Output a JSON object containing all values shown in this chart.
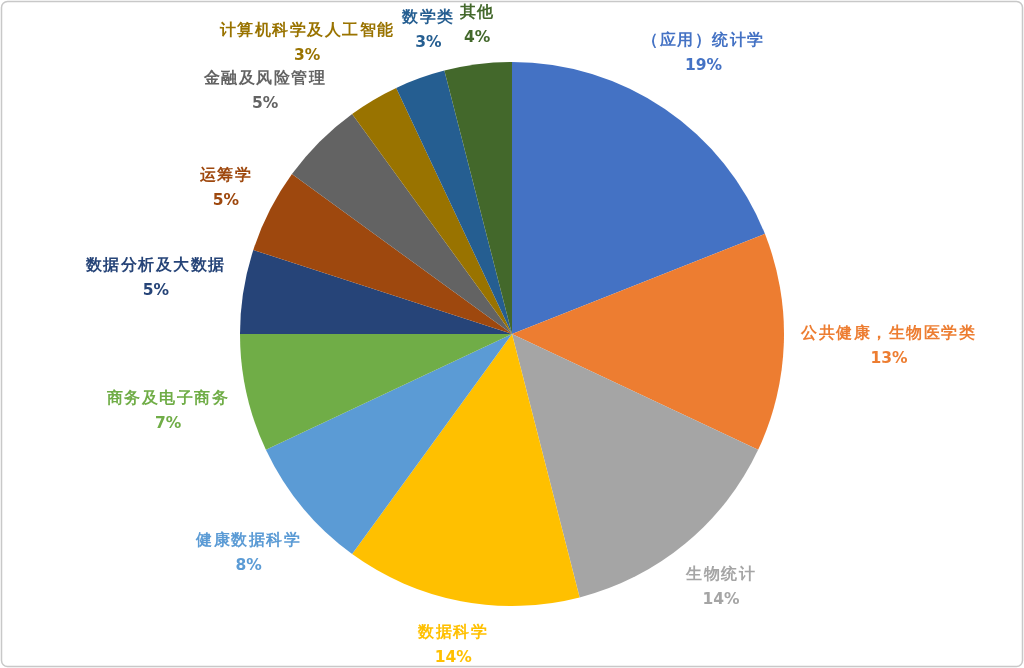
{
  "chart_data": {
    "type": "pie",
    "categories": [
      "（应用）统计学",
      "公共健康，生物医学类",
      "生物统计",
      "数据科学",
      "健康数据科学",
      "商务及电子商务",
      "数据分析及大数据",
      "运筹学",
      "金融及风险管理",
      "计算机科学及人工智能",
      "数学类",
      "其他"
    ],
    "values": [
      19,
      13,
      14,
      14,
      8,
      7,
      5,
      5,
      5,
      3,
      3,
      4
    ],
    "value_labels": [
      "19%",
      "13%",
      "14%",
      "14%",
      "8%",
      "7%",
      "5%",
      "5%",
      "5%",
      "3%",
      "3%",
      "4%"
    ],
    "colors": [
      "#4472c4",
      "#ed7d31",
      "#a5a5a5",
      "#ffc000",
      "#5b9bd5",
      "#70ad47",
      "#264478",
      "#9e480e",
      "#636363",
      "#997300",
      "#255e91",
      "#43682b"
    ]
  }
}
